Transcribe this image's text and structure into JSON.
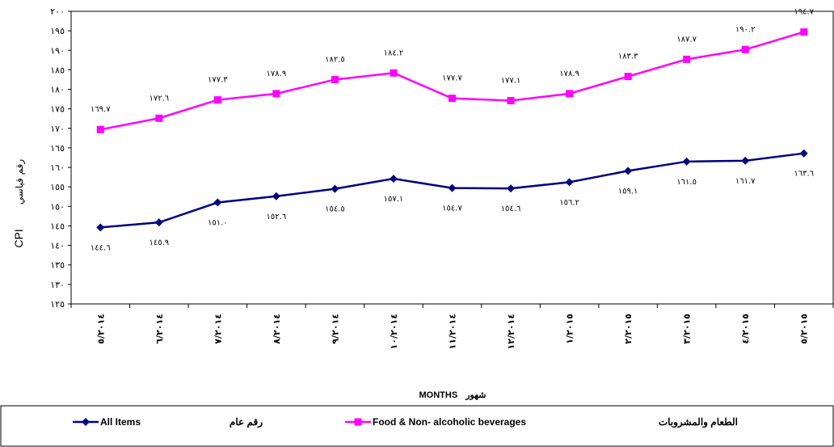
{
  "chart_data": {
    "type": "line",
    "categories": [
      "٥/٢٠١٤",
      "٦/٢٠١٤",
      "٧/٢٠١٤",
      "٨/٢٠١٤",
      "٩/٢٠١٤",
      "١٠/٢٠١٤",
      "١١/٢٠١٤",
      "١٢/٢٠١٤",
      "١/٢٠١٥",
      "٢/٢٠١٥",
      "٣/٢٠١٥",
      "٤/٢٠١٥",
      "٥/٢٠١٥"
    ],
    "series": [
      {
        "name": "Food & Non- alcoholic  beverages",
        "name_ar": "الطعام والمشروبات",
        "color": "#ff00ff",
        "marker": "square",
        "values": [
          169.7,
          172.6,
          177.3,
          178.9,
          182.5,
          184.2,
          177.7,
          177.1,
          178.9,
          183.3,
          187.7,
          190.2,
          194.7
        ],
        "labels": [
          "١٦٩.٧",
          "١٧٢.٦",
          "١٧٧.٣",
          "١٧٨.٩",
          "١٨٢.٥",
          "١٨٤.٢",
          "١٧٧.٧",
          "١٧٧.١",
          "١٧٨.٩",
          "١٨٣.٣",
          "١٨٧.٧",
          "١٩٠.٢",
          "١٩٤.٧"
        ]
      },
      {
        "name": "All Items",
        "name_ar": "رقم عام",
        "color": "#000080",
        "marker": "diamond",
        "values": [
          144.6,
          145.9,
          151.0,
          152.6,
          154.5,
          157.1,
          154.7,
          154.6,
          156.2,
          159.1,
          161.5,
          161.7,
          163.6
        ],
        "labels": [
          "١٤٤.٦",
          "١٤٥.٩",
          "١٥١.٠",
          "١٥٢.٦",
          "١٥٤.٥",
          "١٥٧.١",
          "١٥٤.٧",
          "١٥٤.٦",
          "١٥٦.٢",
          "١٥٩.١",
          "١٦١.٥",
          "١٦١.٧",
          "١٦٣.٦"
        ]
      }
    ],
    "ylim": [
      125,
      200
    ],
    "yticks": [
      125,
      130,
      135,
      140,
      145,
      150,
      155,
      160,
      165,
      170,
      175,
      180,
      185,
      190,
      195,
      200
    ],
    "ytick_labels": [
      "١٢٥",
      "١٣٠",
      "١٣٥",
      "١٤٠",
      "١٤٥",
      "١٥٠",
      "١٥٥",
      "١٦٠",
      "١٦٥",
      "١٧٠",
      "١٧٥",
      "١٨٠",
      "١٨٥",
      "١٩٠",
      "١٩٥",
      "٢٠٠"
    ],
    "xlabel": "MONTHS",
    "xlabel_ar": "شهور",
    "ylabel": "CPI",
    "ylabel_ar": "رقم قياسي",
    "grid": false,
    "legend_position": "bottom"
  }
}
